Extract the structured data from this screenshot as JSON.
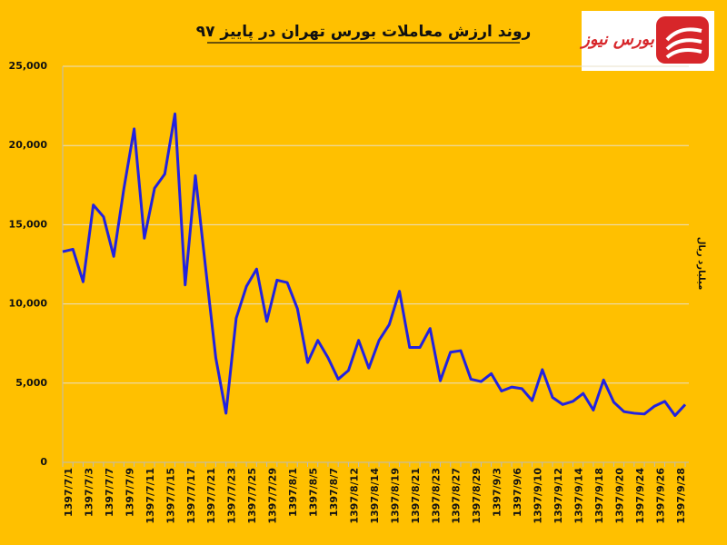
{
  "chart_data": {
    "type": "line",
    "title": "روند ارزش معاملات بورس تهران در پاییز ۹۷",
    "y_label": "میلیارد ریال",
    "logo_text": "بورس نیوز",
    "categories": [
      "1397/7/1",
      null,
      "1397/7/3",
      null,
      "1397/7/7",
      null,
      "1397/7/9",
      null,
      "1397/7/11",
      null,
      "1397/7/15",
      null,
      "1397/7/17",
      null,
      "1397/7/21",
      null,
      "1397/7/23",
      null,
      "1397/7/25",
      null,
      "1397/7/29",
      null,
      "1397/8/1",
      null,
      "1397/8/5",
      null,
      "1397/8/7",
      null,
      "1397/8/12",
      null,
      "1397/8/14",
      null,
      "1397/8/19",
      null,
      "1397/8/21",
      null,
      "1397/8/23",
      null,
      "1397/8/27",
      null,
      "1397/8/29",
      null,
      "1397/9/3",
      null,
      "1397/9/6",
      null,
      "1397/9/10",
      null,
      "1397/9/12",
      null,
      "1397/9/14",
      null,
      "1397/9/18",
      null,
      "1397/9/20",
      null,
      "1397/9/24",
      null,
      "1397/9/26",
      null,
      "1397/9/28",
      null
    ],
    "series": [
      {
        "name": "ارزش معاملات",
        "color": "#2222e0",
        "values": [
          13300,
          13450,
          11400,
          16250,
          15500,
          13000,
          17300,
          21050,
          14150,
          17300,
          18200,
          22000,
          11200,
          18100,
          12300,
          6600,
          3100,
          9100,
          11100,
          12200,
          8900,
          11500,
          11350,
          9700,
          6300,
          7700,
          6600,
          5250,
          5800,
          7700,
          5950,
          7700,
          8700,
          10800,
          7250,
          7250,
          8450,
          5150,
          6950,
          7050,
          5250,
          5100,
          5600,
          4500,
          4750,
          4650,
          3900,
          5850,
          4100,
          3650,
          3850,
          4350,
          3300,
          5200,
          3800,
          3200,
          3100,
          3050,
          3550,
          3850,
          2950,
          3650
        ]
      }
    ],
    "ylim": [
      0,
      25000
    ],
    "yticks": [
      0,
      {
        "value": 5000,
        "label": "5,000"
      },
      {
        "value": 10000,
        "label": "10,000"
      },
      {
        "value": 15000,
        "label": "15,000"
      },
      {
        "value": 20000,
        "label": "20,000"
      },
      {
        "value": 25000,
        "label": "25,000"
      }
    ],
    "grid": true
  }
}
